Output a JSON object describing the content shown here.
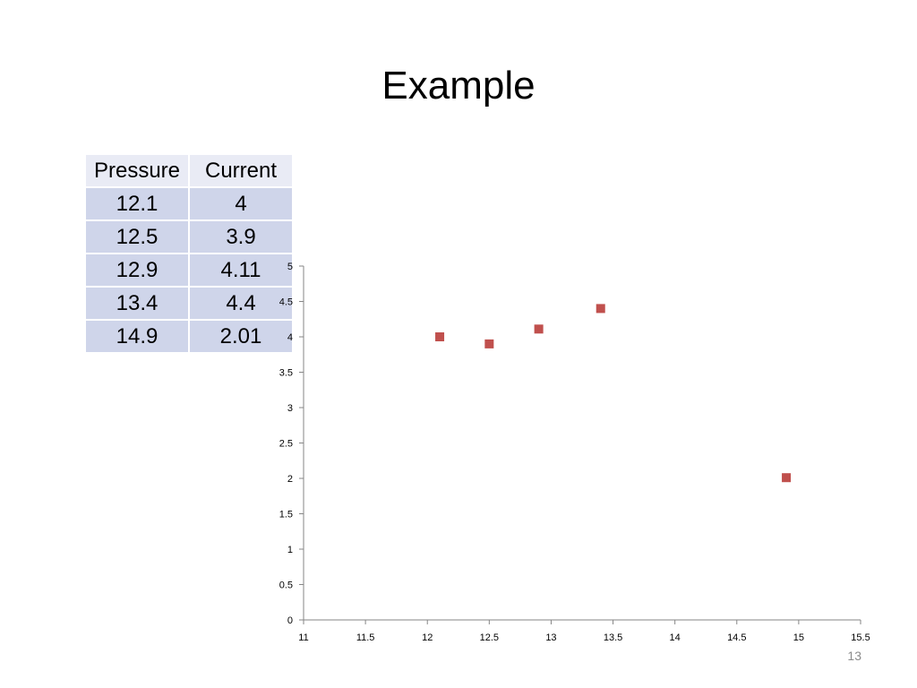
{
  "slide": {
    "title": "Example",
    "page_number": "13"
  },
  "table": {
    "headers": [
      "Pressure",
      "Current"
    ],
    "rows": [
      [
        "12.1",
        "4"
      ],
      [
        "12.5",
        "3.9"
      ],
      [
        "12.9",
        "4.11"
      ],
      [
        "13.4",
        "4.4"
      ],
      [
        "14.9",
        "2.01"
      ]
    ]
  },
  "chart_data": {
    "type": "scatter",
    "title": "",
    "xlabel": "",
    "ylabel": "",
    "x": [
      12.1,
      12.5,
      12.9,
      13.4,
      14.9
    ],
    "y": [
      4,
      3.9,
      4.11,
      4.4,
      2.01
    ],
    "xlim": [
      11,
      15.5
    ],
    "ylim": [
      0,
      5
    ],
    "x_ticks": [
      "11",
      "11.5",
      "12",
      "12.5",
      "13",
      "13.5",
      "14",
      "14.5",
      "15",
      "15.5"
    ],
    "y_ticks": [
      "0",
      "0.5",
      "1",
      "1.5",
      "2",
      "2.5",
      "3",
      "3.5",
      "4",
      "4.5",
      "5"
    ],
    "marker_color": "#c0504d",
    "marker": "square",
    "grid": false,
    "legend": "none"
  }
}
